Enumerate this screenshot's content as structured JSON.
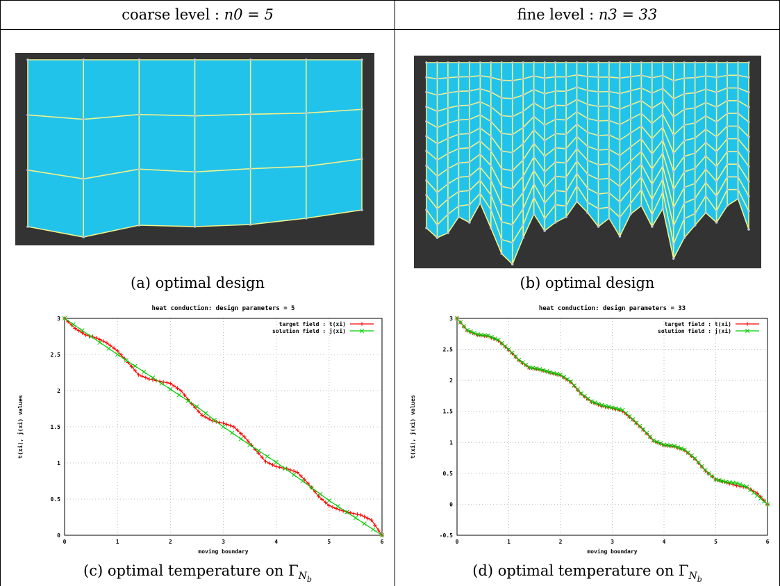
{
  "columns": [
    {
      "header_text": "coarse level : ",
      "header_math": "n0 = 5",
      "design_caption": "(a) optimal design",
      "temp_caption": "(c) optimal temperature on Γ",
      "mesh": {
        "design_parameters": 5,
        "background": "#333333",
        "fill": "#22c3ea",
        "line": "#f2f28a"
      }
    },
    {
      "header_text": "fine level : ",
      "header_math": "n3 = 33",
      "design_caption": "(b) optimal design",
      "temp_caption": "(d) optimal temperature on Γ",
      "mesh": {
        "design_parameters": 33,
        "background": "#333333",
        "fill": "#22c3ea",
        "line": "#f2f28a"
      }
    }
  ],
  "caption_subscript": "N",
  "caption_subsubscript": "b",
  "chart_data": [
    {
      "type": "line",
      "title": "heat conduction: design parameters = 5",
      "xlabel": "moving boundary",
      "ylabel": "t(xi), j(xi) values",
      "xlim": [
        0,
        6
      ],
      "ylim": [
        0,
        3
      ],
      "xticks": [
        "0",
        "1",
        "2",
        "3",
        "4",
        "5",
        "6"
      ],
      "yticks": [
        "0",
        "0.5",
        "1",
        "1.5",
        "2",
        "2.5",
        "3"
      ],
      "grid": true,
      "legend_position": "top-right",
      "series": [
        {
          "name": "target field : t(xi)",
          "color": "#ff0000",
          "marker": "plus",
          "x": [
            0,
            0.2,
            0.4,
            0.6,
            0.8,
            1.0,
            1.2,
            1.4,
            1.6,
            1.8,
            2.0,
            2.2,
            2.4,
            2.6,
            2.8,
            3.0,
            3.2,
            3.4,
            3.6,
            3.8,
            4.0,
            4.2,
            4.4,
            4.6,
            4.8,
            5.0,
            5.2,
            5.4,
            5.6,
            5.8,
            6.0
          ],
          "y": [
            3.0,
            2.86,
            2.77,
            2.73,
            2.66,
            2.55,
            2.39,
            2.22,
            2.16,
            2.13,
            2.1,
            2.0,
            1.82,
            1.66,
            1.58,
            1.55,
            1.5,
            1.36,
            1.19,
            1.02,
            0.95,
            0.92,
            0.87,
            0.72,
            0.54,
            0.41,
            0.35,
            0.31,
            0.28,
            0.21,
            0.0
          ]
        },
        {
          "name": "solution field : j(xi)",
          "color": "#00cc00",
          "marker": "x",
          "x": [
            0,
            0.5,
            1.0,
            1.5,
            2.0,
            2.5,
            3.0,
            3.5,
            4.0,
            4.5,
            5.0,
            5.5,
            6.0
          ],
          "y": [
            3.0,
            2.75,
            2.5,
            2.26,
            2.02,
            1.78,
            1.5,
            1.25,
            1.01,
            0.75,
            0.48,
            0.24,
            0.0
          ]
        }
      ]
    },
    {
      "type": "line",
      "title": "heat conduction: design parameters = 33",
      "xlabel": "moving boundary",
      "ylabel": "t(xi), j(xi) values",
      "xlim": [
        0,
        6
      ],
      "ylim": [
        -0.5,
        3
      ],
      "xticks": [
        "0",
        "1",
        "2",
        "3",
        "4",
        "5",
        "6"
      ],
      "yticks": [
        "-0.5",
        "0",
        "0.5",
        "1",
        "1.5",
        "2",
        "2.5",
        "3"
      ],
      "grid": true,
      "legend_position": "top-right",
      "series": [
        {
          "name": "target field : t(xi)",
          "color": "#ff0000",
          "marker": "plus",
          "x": [
            0,
            0.2,
            0.4,
            0.6,
            0.8,
            1.0,
            1.2,
            1.4,
            1.6,
            1.8,
            2.0,
            2.2,
            2.4,
            2.6,
            2.8,
            3.0,
            3.2,
            3.4,
            3.6,
            3.8,
            4.0,
            4.2,
            4.4,
            4.6,
            4.8,
            5.0,
            5.2,
            5.4,
            5.6,
            5.8,
            6.0
          ],
          "y": [
            3.0,
            2.8,
            2.73,
            2.71,
            2.64,
            2.49,
            2.32,
            2.2,
            2.17,
            2.12,
            2.08,
            1.97,
            1.78,
            1.65,
            1.58,
            1.55,
            1.5,
            1.36,
            1.2,
            1.02,
            0.95,
            0.93,
            0.87,
            0.73,
            0.54,
            0.4,
            0.35,
            0.3,
            0.27,
            0.18,
            0.0
          ]
        },
        {
          "name": "solution field : j(xi)",
          "color": "#00cc00",
          "marker": "x",
          "x": [
            0,
            0.2,
            0.4,
            0.6,
            0.8,
            1.0,
            1.2,
            1.4,
            1.6,
            1.8,
            2.0,
            2.2,
            2.4,
            2.6,
            2.8,
            3.0,
            3.2,
            3.4,
            3.6,
            3.8,
            4.0,
            4.2,
            4.4,
            4.6,
            4.8,
            5.0,
            5.2,
            5.4,
            5.6,
            5.8,
            6.0
          ],
          "y": [
            3.0,
            2.81,
            2.74,
            2.72,
            2.65,
            2.5,
            2.33,
            2.21,
            2.18,
            2.13,
            2.09,
            1.98,
            1.79,
            1.66,
            1.6,
            1.56,
            1.52,
            1.37,
            1.21,
            1.03,
            0.96,
            0.94,
            0.88,
            0.74,
            0.55,
            0.4,
            0.36,
            0.34,
            0.28,
            0.14,
            0.0
          ]
        }
      ]
    }
  ]
}
